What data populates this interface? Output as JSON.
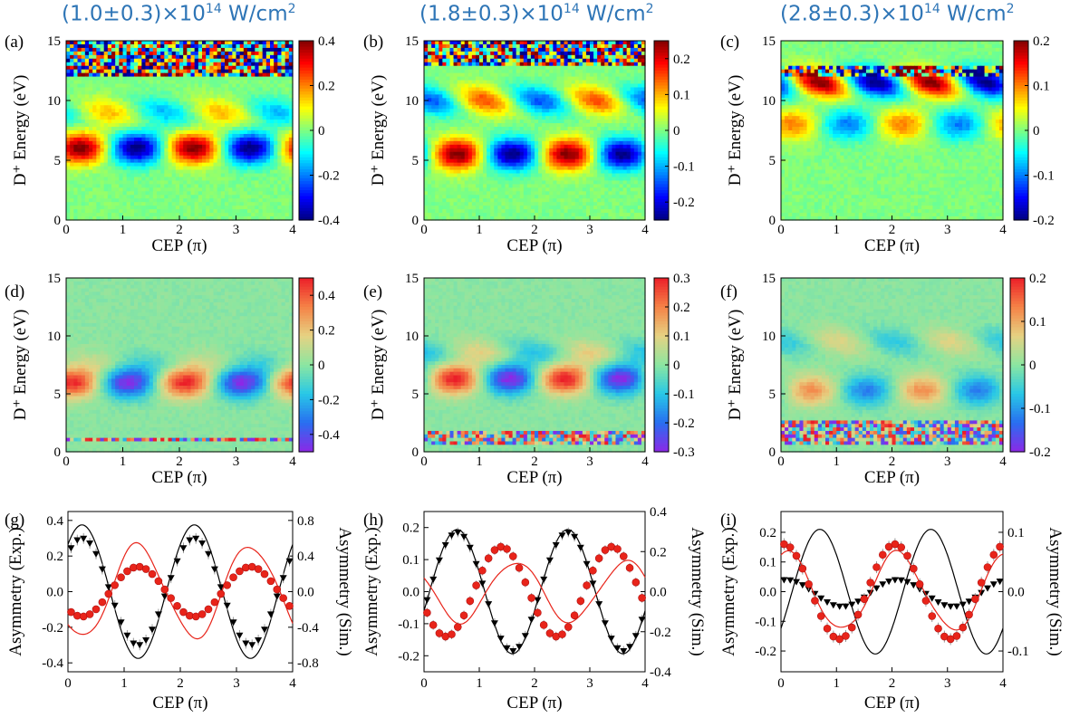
{
  "column_headers": [
    {
      "base": "(1.0±0.3)×10",
      "exp": "14",
      "unit": " W/cm",
      "unit_exp": "2"
    },
    {
      "base": "(1.8±0.3)×10",
      "exp": "14",
      "unit": " W/cm",
      "unit_exp": "2"
    },
    {
      "base": "(2.8±0.3)×10",
      "exp": "14",
      "unit": " W/cm",
      "unit_exp": "2"
    }
  ],
  "colors": {
    "header": "#2e75b6",
    "exp_marker": "#e8241a",
    "sim_line_red": "#e8241a",
    "black": "#000000"
  },
  "chart_data": [
    {
      "id": "a",
      "panel_label": "(a)",
      "type": "heatmap",
      "colormap": "jet",
      "xlabel": "CEP (π)",
      "ylabel": "D⁺ Energy (eV)",
      "xlim": [
        0,
        4
      ],
      "ylim": [
        0,
        15
      ],
      "x_ticks": [
        "0",
        "1",
        "2",
        "3",
        "4"
      ],
      "y_ticks": [
        "0",
        "5",
        "10",
        "15"
      ],
      "colorbar_ticks": [
        "0.4",
        "0.2",
        "0",
        "-0.2",
        "-0.4"
      ],
      "clim": [
        -0.4,
        0.4
      ],
      "features": {
        "main_band_center_ev": 6,
        "main_amp": 0.4,
        "main_phase_pi": 0.25,
        "upper_band_center_ev": 9,
        "upper_amp": 0.15,
        "noise_band_ev": [
          12,
          15
        ]
      }
    },
    {
      "id": "b",
      "panel_label": "(b)",
      "type": "heatmap",
      "colormap": "jet",
      "xlabel": "CEP (π)",
      "ylabel": "D⁺ Energy (eV)",
      "xlim": [
        0,
        4
      ],
      "ylim": [
        0,
        15
      ],
      "x_ticks": [
        "0",
        "1",
        "2",
        "3",
        "4"
      ],
      "y_ticks": [
        "0",
        "5",
        "10",
        "15"
      ],
      "colorbar_ticks": [
        "0.2",
        "0.1",
        "0",
        "-0.1",
        "-0.2"
      ],
      "clim": [
        -0.25,
        0.25
      ],
      "features": {
        "main_band_center_ev": 5.5,
        "main_amp": 0.25,
        "main_phase_pi": 0.6,
        "upper_band_center_ev": 10,
        "upper_amp": 0.15,
        "noise_band_ev": [
          13,
          15
        ]
      }
    },
    {
      "id": "c",
      "panel_label": "(c)",
      "type": "heatmap",
      "colormap": "jet",
      "xlabel": "CEP (π)",
      "ylabel": "D⁺ Energy (eV)",
      "xlim": [
        0,
        4
      ],
      "ylim": [
        0,
        15
      ],
      "x_ticks": [
        "0",
        "1",
        "2",
        "3",
        "4"
      ],
      "y_ticks": [
        "0",
        "5",
        "10",
        "15"
      ],
      "colorbar_ticks": [
        "0.2",
        "0.1",
        "0",
        "-0.1",
        "-0.2"
      ],
      "clim": [
        -0.2,
        0.2
      ],
      "features": {
        "main_band_center_ev": 8,
        "main_amp": 0.1,
        "main_phase_pi": 0.2,
        "upper_band_center_ev": 11.5,
        "upper_amp": 0.2,
        "noise_band_ev": [
          12,
          13
        ]
      }
    },
    {
      "id": "d",
      "panel_label": "(d)",
      "type": "heatmap",
      "colormap": "jet_sim",
      "xlabel": "CEP (π)",
      "ylabel": "D⁺ Energy (eV)",
      "xlim": [
        0,
        4
      ],
      "ylim": [
        0,
        15
      ],
      "x_ticks": [
        "0",
        "1",
        "2",
        "3",
        "4"
      ],
      "y_ticks": [
        "0",
        "5",
        "10",
        "15"
      ],
      "colorbar_ticks": [
        "0.4",
        "0.2",
        "0",
        "-0.2",
        "-0.4"
      ],
      "clim": [
        -0.5,
        0.5
      ],
      "features": {
        "main_band_center_ev": 6,
        "main_amp": 0.5,
        "main_phase_pi": 0.1,
        "upper_band_center_ev": 7.5,
        "upper_amp": 0.1,
        "noise_band_ev": [
          0.8,
          1.2
        ]
      }
    },
    {
      "id": "e",
      "panel_label": "(e)",
      "type": "heatmap",
      "colormap": "jet_sim",
      "xlabel": "CEP (π)",
      "ylabel": "D⁺ Energy (eV)",
      "xlim": [
        0,
        4
      ],
      "ylim": [
        0,
        15
      ],
      "x_ticks": [
        "0",
        "1",
        "2",
        "3",
        "4"
      ],
      "y_ticks": [
        "0",
        "5",
        "10",
        "15"
      ],
      "colorbar_ticks": [
        "0.3",
        "0.2",
        "0.1",
        "0",
        "-0.1",
        "-0.2",
        "-0.3"
      ],
      "clim": [
        -0.3,
        0.3
      ],
      "features": {
        "main_band_center_ev": 6.3,
        "main_amp": 0.3,
        "main_phase_pi": 0.55,
        "upper_band_center_ev": 8.5,
        "upper_amp": 0.1,
        "noise_band_ev": [
          0.5,
          1.8
        ]
      }
    },
    {
      "id": "f",
      "panel_label": "(f)",
      "type": "heatmap",
      "colormap": "jet_sim",
      "xlabel": "CEP (π)",
      "ylabel": "D⁺ Energy (eV)",
      "xlim": [
        0,
        4
      ],
      "ylim": [
        0,
        15
      ],
      "x_ticks": [
        "0",
        "1",
        "2",
        "3",
        "4"
      ],
      "y_ticks": [
        "0",
        "5",
        "10",
        "15"
      ],
      "colorbar_ticks": [
        "0.2",
        "0.1",
        "0",
        "-0.1",
        "-0.2"
      ],
      "clim": [
        -0.2,
        0.2
      ],
      "features": {
        "main_band_center_ev": 5.3,
        "main_amp": 0.12,
        "main_phase_pi": 0.55,
        "upper_band_center_ev": 9.5,
        "upper_amp": 0.06,
        "noise_band_ev": [
          0.5,
          2.6
        ]
      }
    },
    {
      "id": "g",
      "panel_label": "(g)",
      "type": "line",
      "xlabel": "CEP (π)",
      "ylabel_left": "Asymmetry (Exp.)",
      "ylabel_right": "Asymmetry (Sim.)",
      "xlim": [
        0,
        4
      ],
      "ylim_left": [
        -0.45,
        0.45
      ],
      "ylim_right": [
        -0.9,
        0.9
      ],
      "x_ticks": [
        "0",
        "1",
        "2",
        "3",
        "4"
      ],
      "y_ticks_left": [
        "0.4",
        "0.2",
        "0.0",
        "-0.2",
        "-0.4"
      ],
      "y_ticks_right": [
        "0.8",
        "0.4",
        "0.0",
        "-0.4",
        "-0.8"
      ],
      "series": [
        {
          "kind": "sim_black",
          "axis": "right",
          "amp": 0.75,
          "phase_pi": 0.25
        },
        {
          "kind": "exp_black_triangles",
          "axis": "left",
          "amp": 0.3,
          "phase_pi": 0.25,
          "error": 0.03
        },
        {
          "kind": "sim_red",
          "axis": "right",
          "amp": 0.52,
          "phase_pi": 1.25
        },
        {
          "kind": "exp_red_circles",
          "axis": "left",
          "amp": 0.14,
          "phase_pi": 1.25,
          "error": 0.02
        }
      ]
    },
    {
      "id": "h",
      "panel_label": "(h)",
      "type": "line",
      "xlabel": "CEP (π)",
      "ylabel_left": "Asymmetry (Exp.)",
      "ylabel_right": "Asymmetry (Sim.)",
      "xlim": [
        0,
        4
      ],
      "ylim_left": [
        -0.25,
        0.25
      ],
      "ylim_right": [
        -0.4,
        0.4
      ],
      "x_ticks": [
        "0",
        "1",
        "2",
        "3",
        "4"
      ],
      "y_ticks_left": [
        "0.2",
        "0.1",
        "0.0",
        "-0.1",
        "-0.2"
      ],
      "y_ticks_right": [
        "0.4",
        "0.2",
        "0.0",
        "-0.2",
        "-0.4"
      ],
      "series": [
        {
          "kind": "sim_black",
          "axis": "right",
          "amp": 0.31,
          "phase_pi": 0.6
        },
        {
          "kind": "exp_black_triangles",
          "axis": "left",
          "amp": 0.185,
          "phase_pi": 0.6,
          "error": 0.015
        },
        {
          "kind": "sim_red",
          "axis": "right",
          "amp": 0.15,
          "phase_pi": 1.65
        },
        {
          "kind": "exp_red_circles",
          "axis": "left",
          "amp": 0.14,
          "phase_pi": 1.4,
          "error": 0.015
        }
      ]
    },
    {
      "id": "i",
      "panel_label": "(i)",
      "type": "line",
      "xlabel": "CEP (π)",
      "ylabel_left": "Asymmetry (Exp.)",
      "ylabel_right": "Asymmetry (Sim.)",
      "xlim": [
        0,
        4
      ],
      "ylim_left": [
        -0.27,
        0.27
      ],
      "ylim_right": [
        -0.135,
        0.135
      ],
      "x_ticks": [
        "0",
        "1",
        "2",
        "3",
        "4"
      ],
      "y_ticks_left": [
        "0.2",
        "0.1",
        "0.0",
        "-0.1",
        "-0.2"
      ],
      "y_ticks_right": [
        "0.1",
        "0.0",
        "-0.1"
      ],
      "series": [
        {
          "kind": "sim_black",
          "axis": "right",
          "amp": 0.105,
          "phase_pi": 0.7
        },
        {
          "kind": "exp_black_triangles",
          "axis": "left",
          "amp": 0.045,
          "phase_pi": 0.1,
          "error": 0.01,
          "offset": -0.005
        },
        {
          "kind": "sim_red",
          "axis": "right",
          "amp": 0.065,
          "phase_pi": 0.1
        },
        {
          "kind": "exp_red_circles",
          "axis": "left",
          "amp": 0.16,
          "phase_pi": 0.05,
          "error": 0.02
        }
      ]
    }
  ]
}
